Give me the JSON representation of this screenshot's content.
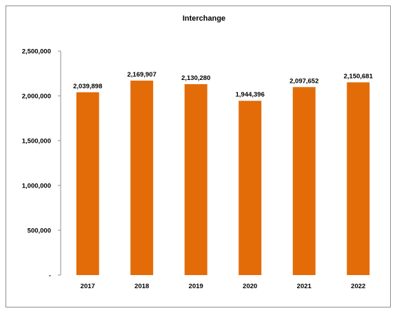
{
  "chart_data": {
    "type": "bar",
    "title": "Interchange",
    "categories": [
      "2017",
      "2018",
      "2019",
      "2020",
      "2021",
      "2022"
    ],
    "values": [
      2039898,
      2169907,
      2130280,
      1944396,
      2097652,
      2150681
    ],
    "value_labels": [
      "2,039,898",
      "2,169,907",
      "2,130,280",
      "1,944,396",
      "2,097,652",
      "2,150,681"
    ],
    "y_ticks": [
      0,
      500000,
      1000000,
      1500000,
      2000000,
      2500000
    ],
    "y_tick_labels": [
      "-",
      "500,000",
      "1,000,000",
      "1,500,000",
      "2,000,000",
      "2,500,000"
    ],
    "ylim": [
      0,
      2500000
    ],
    "xlabel": "",
    "ylabel": "",
    "grid": false,
    "legend": "none",
    "bar_color": "#E36C09"
  }
}
